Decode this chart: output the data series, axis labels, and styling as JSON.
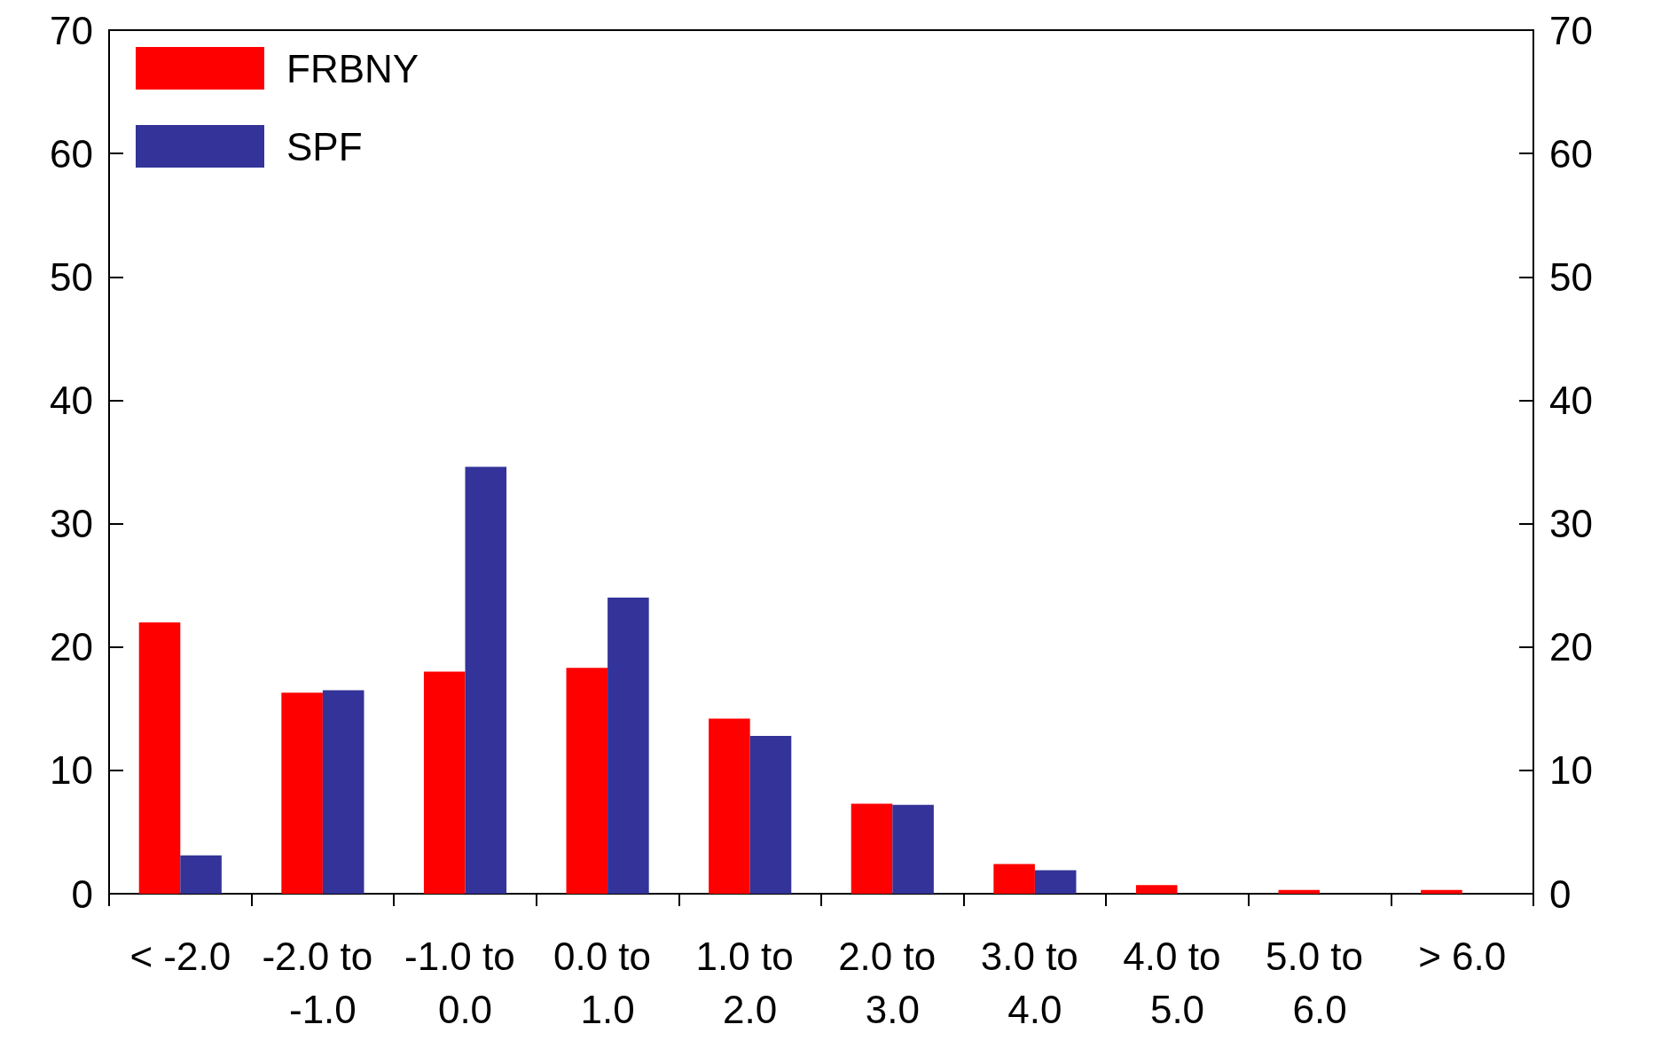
{
  "chart_data": {
    "type": "bar",
    "categories": [
      "< -2.0",
      "-2.0 to -1.0",
      "-1.0 to 0.0",
      "0.0 to 1.0",
      "1.0 to 2.0",
      "2.0 to 3.0",
      "3.0 to 4.0",
      "4.0 to 5.0",
      "5.0 to 6.0",
      "> 6.0"
    ],
    "series": [
      {
        "name": "FRBNY",
        "color": "#ff0000",
        "values": [
          22.0,
          16.3,
          18.0,
          18.3,
          14.2,
          7.3,
          2.4,
          0.7,
          0.3,
          0.3
        ]
      },
      {
        "name": "SPF",
        "color": "#333399",
        "values": [
          3.1,
          16.5,
          34.6,
          24.0,
          12.8,
          7.2,
          1.9,
          0,
          0,
          0
        ]
      }
    ],
    "ylim": [
      0,
      70
    ],
    "yticks": [
      0,
      10,
      20,
      30,
      40,
      50,
      60,
      70
    ],
    "y2lim": [
      0,
      70
    ],
    "y2ticks": [
      0,
      10,
      20,
      30,
      40,
      50,
      60,
      70
    ],
    "legend": "top left",
    "grid": false
  }
}
